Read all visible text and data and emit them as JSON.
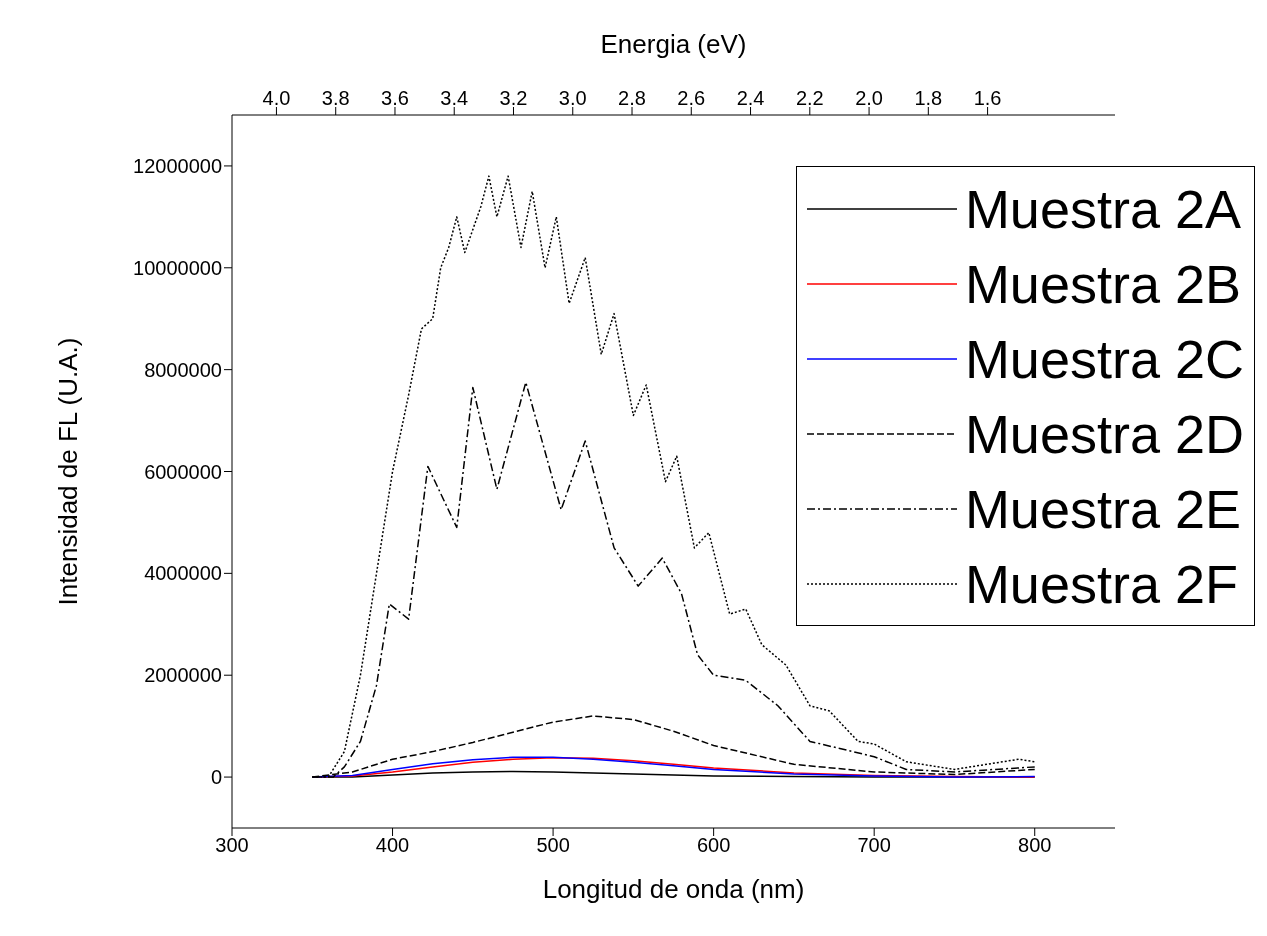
{
  "chart_data": {
    "type": "line",
    "xlabel": "Longitud de onda (nm)",
    "ylabel": "Intensidad de FL (U.A.)",
    "x2label": "Energia (eV)",
    "xlim": [
      300,
      850
    ],
    "xticks": [
      300,
      400,
      500,
      600,
      700,
      800
    ],
    "x2lim": [
      4.15,
      1.17
    ],
    "x2ticks": [
      {
        "value": 4,
        "label": "4.0"
      },
      {
        "value": 3.8,
        "label": "3.8"
      },
      {
        "value": 3.6,
        "label": "3.6"
      },
      {
        "value": 3.4,
        "label": "3.4"
      },
      {
        "value": 3.2,
        "label": "3.2"
      },
      {
        "value": 3,
        "label": "3.0"
      },
      {
        "value": 2.8,
        "label": "2.8"
      },
      {
        "value": 2.6,
        "label": "2.6"
      },
      {
        "value": 2.4,
        "label": "2.4"
      },
      {
        "value": 2.2,
        "label": "2.2"
      },
      {
        "value": 2,
        "label": "2.0"
      },
      {
        "value": 1.8,
        "label": "1.8"
      },
      {
        "value": 1.6,
        "label": "1.6"
      }
    ],
    "ylim": [
      -1000000,
      13000000
    ],
    "yticks": [
      0,
      2000000,
      4000000,
      6000000,
      8000000,
      10000000,
      12000000
    ],
    "grid": false,
    "legend": "top right",
    "marker": "none",
    "x": [
      350,
      375,
      400,
      425,
      450,
      475,
      500,
      525,
      550,
      575,
      600,
      650,
      700,
      750,
      800
    ],
    "series": [
      {
        "name": "Muestra 2A",
        "color": "#000000",
        "line_style": "solid",
        "values": [
          0,
          0,
          40000,
          80000,
          100000,
          110000,
          100000,
          80000,
          60000,
          40000,
          20000,
          10000,
          0,
          0,
          0
        ]
      },
      {
        "name": "Muestra 2B",
        "color": "#ff0000",
        "line_style": "solid",
        "values": [
          0,
          20000,
          100000,
          200000,
          290000,
          350000,
          380000,
          370000,
          320000,
          250000,
          180000,
          80000,
          30000,
          10000,
          0
        ]
      },
      {
        "name": "Muestra 2C",
        "color": "#0000ff",
        "line_style": "solid",
        "values": [
          0,
          30000,
          150000,
          260000,
          340000,
          390000,
          390000,
          350000,
          290000,
          220000,
          150000,
          60000,
          20000,
          0,
          10000
        ]
      },
      {
        "name": "Muestra 2D",
        "color": "#000000",
        "line_style": "dashed",
        "values": [
          0,
          100000,
          350000,
          500000,
          680000,
          880000,
          1080000,
          1200000,
          1130000,
          900000,
          620000,
          250000,
          100000,
          50000,
          150000
        ]
      },
      {
        "name": "Muestra 2E",
        "color": "#000000",
        "line_style": "dashdot",
        "x": [
          350,
          363,
          370,
          380,
          390,
          398,
          410,
          422,
          440,
          450,
          465,
          483,
          505,
          520,
          538,
          553,
          568,
          580,
          590,
          600,
          620,
          640,
          660,
          680,
          700,
          720,
          750,
          800
        ],
        "values": [
          0,
          0,
          200000,
          700000,
          1800000,
          3400000,
          3100000,
          6100000,
          4900000,
          7650000,
          5650000,
          7750000,
          5250000,
          6600000,
          4500000,
          3750000,
          4300000,
          3600000,
          2400000,
          2000000,
          1900000,
          1400000,
          700000,
          550000,
          400000,
          150000,
          100000,
          200000
        ]
      },
      {
        "name": "Muestra 2F",
        "color": "#000000",
        "line_style": "dotted",
        "x": [
          350,
          360,
          370,
          380,
          390,
          400,
          410,
          418,
          425,
          430,
          435,
          440,
          445,
          455,
          460,
          465,
          472,
          480,
          487,
          495,
          502,
          510,
          520,
          530,
          538,
          550,
          558,
          570,
          577,
          588,
          597,
          610,
          620,
          630,
          645,
          660,
          672,
          690,
          700,
          720,
          750,
          780,
          790,
          800
        ],
        "values": [
          0,
          0,
          500000,
          2000000,
          4000000,
          6000000,
          7500000,
          8800000,
          9000000,
          10000000,
          10400000,
          11000000,
          10300000,
          11200000,
          11800000,
          11000000,
          11800000,
          10400000,
          11500000,
          10000000,
          11000000,
          9300000,
          10200000,
          8300000,
          9100000,
          7100000,
          7700000,
          5800000,
          6300000,
          4500000,
          4800000,
          3200000,
          3300000,
          2600000,
          2200000,
          1400000,
          1300000,
          700000,
          650000,
          300000,
          150000,
          300000,
          350000,
          300000
        ]
      }
    ]
  }
}
